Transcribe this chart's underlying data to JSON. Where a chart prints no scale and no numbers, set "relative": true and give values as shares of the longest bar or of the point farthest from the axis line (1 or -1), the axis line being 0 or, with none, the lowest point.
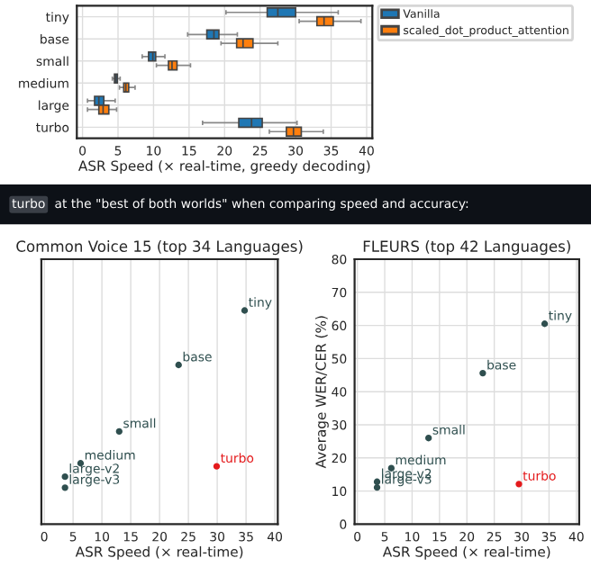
{
  "chart_data": [
    {
      "type": "box",
      "orientation": "horizontal",
      "categories": [
        "tiny",
        "base",
        "small",
        "medium",
        "large",
        "turbo"
      ],
      "xlabel": "ASR Speed (× real-time, greedy decoding)",
      "xlim": [
        -0.8,
        40.8
      ],
      "xticks": [
        0,
        5,
        10,
        15,
        20,
        25,
        30,
        35,
        40
      ],
      "grid": true,
      "legend": "right",
      "series": [
        {
          "name": "Vanilla",
          "color": "#1f77b4",
          "boxes": [
            {
              "low": 20.2,
              "q1": 26,
              "median": 27.5,
              "q3": 30,
              "high": 36
            },
            {
              "low": 14.8,
              "q1": 17.5,
              "median": 18.5,
              "q3": 19.2,
              "high": 21.8
            },
            {
              "low": 8.4,
              "q1": 9.3,
              "median": 9.9,
              "q3": 10.3,
              "high": 11.6
            },
            {
              "low": 4.2,
              "q1": 4.5,
              "median": 4.7,
              "q3": 4.9,
              "high": 5.3
            },
            {
              "low": 0.7,
              "q1": 1.7,
              "median": 2.3,
              "q3": 3,
              "high": 4.6
            },
            {
              "low": 16.9,
              "q1": 22,
              "median": 23.8,
              "q3": 25.3,
              "high": 30.2
            }
          ]
        },
        {
          "name": "scaled_dot_product_attention",
          "color": "#ff7f0e",
          "boxes": [
            {
              "low": 30.5,
              "q1": 33,
              "median": 34,
              "q3": 35.3,
              "high": 39.2
            },
            {
              "low": 19.5,
              "q1": 21.7,
              "median": 22.6,
              "q3": 24,
              "high": 27.5
            },
            {
              "low": 10.4,
              "q1": 12.1,
              "median": 12.6,
              "q3": 13.3,
              "high": 15.2
            },
            {
              "low": 5.2,
              "q1": 5.8,
              "median": 6.1,
              "q3": 6.5,
              "high": 7.4
            },
            {
              "low": 0.7,
              "q1": 2.3,
              "median": 2.9,
              "q3": 3.7,
              "high": 4.8
            },
            {
              "low": 26.3,
              "q1": 28.7,
              "median": 29.7,
              "q3": 30.8,
              "high": 33.9
            }
          ]
        }
      ]
    },
    {
      "type": "other",
      "annotations": [
        "turbo",
        "at the \"best of both worlds\" when comparing speed and accuracy:"
      ]
    },
    {
      "type": "scatter",
      "title": "Common Voice 15 (top 34 Languages)",
      "xlabel": "ASR Speed (× real-time)",
      "xlim": [
        -0.5,
        40.5
      ],
      "xticks": [
        0,
        5,
        10,
        15,
        20,
        25,
        30,
        35,
        40
      ],
      "relative": true,
      "grid": true,
      "marker": "circle",
      "x": [
        34.75,
        23.3,
        13.0,
        6.3,
        3.6,
        3.6,
        29.9
      ],
      "values": [
        1,
        0.745,
        0.434,
        0.285,
        0.222,
        0.171,
        0.271
      ],
      "colors": [
        "#2f4f4f",
        "#2f4f4f",
        "#2f4f4f",
        "#2f4f4f",
        "#2f4f4f",
        "#2f4f4f",
        "#e41a1c"
      ],
      "annotations": [
        {
          "text": "tiny",
          "x": 34.75,
          "y": 1
        },
        {
          "text": "base",
          "x": 23.3,
          "y": 0.745
        },
        {
          "text": "small",
          "x": 13.0,
          "y": 0.434
        },
        {
          "text": "medium",
          "x": 6.3,
          "y": 0.285
        },
        {
          "text": "large-v2",
          "x": 3.6,
          "y": 0.222
        },
        {
          "text": "large-v3",
          "x": 3.6,
          "y": 0.171
        },
        {
          "text": "turbo",
          "x": 29.9,
          "y": 0.271
        }
      ]
    },
    {
      "type": "scatter",
      "title": "FLEURS (top 42 Languages)",
      "xlabel": "ASR Speed (× real-time)",
      "ylabel": "Average WER/CER (%)",
      "xlim": [
        -0.5,
        40.5
      ],
      "xticks": [
        0,
        5,
        10,
        15,
        20,
        25,
        30,
        35,
        40
      ],
      "ylim": [
        0,
        80
      ],
      "yticks": [
        0,
        10,
        20,
        30,
        40,
        50,
        60,
        70,
        80
      ],
      "grid": true,
      "marker": "circle",
      "x": [
        34.2,
        22.9,
        13.0,
        6.2,
        3.6,
        3.6,
        29.5
      ],
      "values": [
        60.5,
        45.6,
        26.0,
        16.9,
        12.8,
        11.1,
        12.1
      ],
      "colors": [
        "#2f4f4f",
        "#2f4f4f",
        "#2f4f4f",
        "#2f4f4f",
        "#2f4f4f",
        "#2f4f4f",
        "#e41a1c"
      ],
      "annotations": [
        {
          "text": "tiny",
          "x": 34.2,
          "y": 60.5
        },
        {
          "text": "base",
          "x": 22.9,
          "y": 45.6
        },
        {
          "text": "small",
          "x": 13.0,
          "y": 26.0
        },
        {
          "text": "medium",
          "x": 6.2,
          "y": 16.9
        },
        {
          "text": "large-v2",
          "x": 3.6,
          "y": 12.8
        },
        {
          "text": "large-v3",
          "x": 3.6,
          "y": 11.1
        },
        {
          "text": "turbo",
          "x": 29.5,
          "y": 12.1
        }
      ]
    }
  ]
}
